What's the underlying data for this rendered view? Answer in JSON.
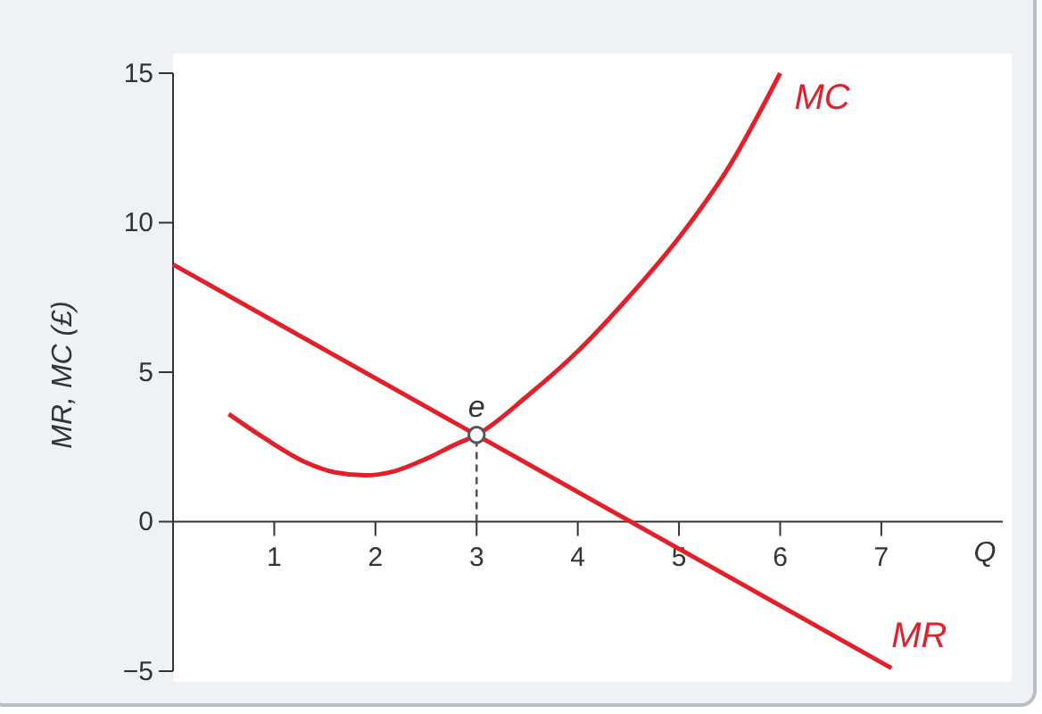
{
  "chart_data": {
    "type": "line",
    "ylabel": "MR, MC (£)",
    "xlabel": "Q",
    "xlim": [
      0,
      8.2
    ],
    "ylim": [
      -5,
      15
    ],
    "xticks": [
      1,
      2,
      3,
      4,
      5,
      6,
      7
    ],
    "yticks": [
      {
        "value": -5,
        "label": "−5"
      },
      0,
      5,
      10,
      15
    ],
    "series": [
      {
        "name": "MR",
        "color": "#e3202a",
        "x": [
          0,
          7.1
        ],
        "values": [
          8.6,
          -4.9
        ]
      },
      {
        "name": "MC",
        "color": "#e3202a",
        "x": [
          0.55,
          0.9,
          1.3,
          1.6,
          1.9,
          2.2,
          2.5,
          2.8,
          3,
          3.5,
          4,
          4.5,
          5,
          5.5,
          6
        ],
        "values": [
          3.6,
          2.8,
          2.0,
          1.65,
          1.55,
          1.7,
          2.1,
          2.6,
          2.9,
          4.2,
          5.7,
          7.5,
          9.5,
          11.9,
          15
        ]
      },
      {
        "type": "line",
        "color": "#555555",
        "line_style": "dashed",
        "x": [
          3,
          3
        ],
        "values": [
          0,
          2.9
        ]
      },
      {
        "type": "scatter",
        "color": "#555555",
        "marker": "circle",
        "x": [
          3
        ],
        "values": [
          2.9
        ]
      }
    ],
    "annotations": [
      {
        "text": "e",
        "x": 3,
        "y": 2.9
      }
    ]
  }
}
